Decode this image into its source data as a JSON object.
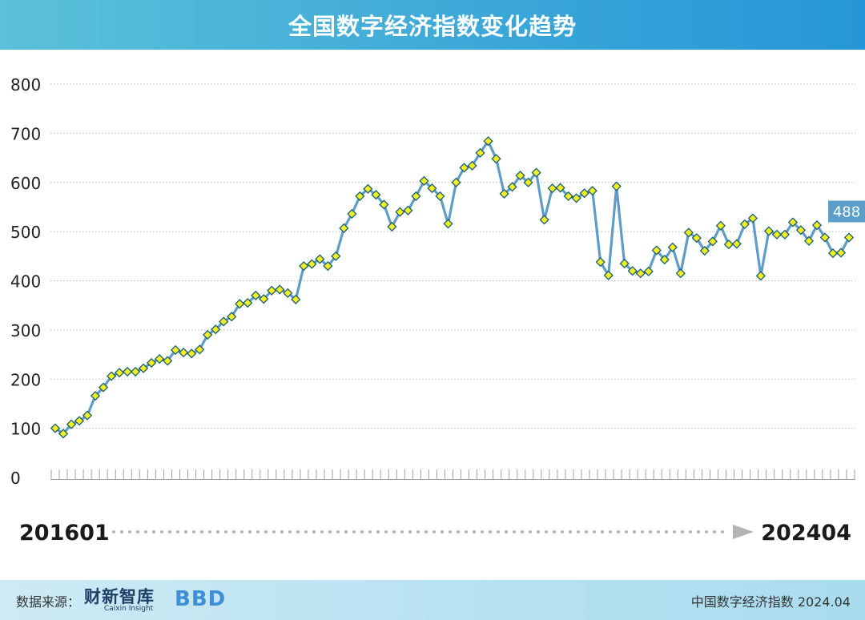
{
  "header": {
    "title": "全国数字经济指数变化趋势"
  },
  "chart_data": {
    "type": "line",
    "title": "全国数字经济指数变化趋势",
    "ylim": [
      0,
      800
    ],
    "yticks": [
      0,
      100,
      200,
      300,
      400,
      500,
      600,
      700,
      800
    ],
    "grid": true,
    "x_start": "201601",
    "x_end": "202404",
    "last_value_label": "488",
    "series": [
      {
        "values": [
          100,
          89,
          108,
          115,
          126,
          166,
          183,
          206,
          213,
          215,
          215,
          222,
          233,
          241,
          237,
          259,
          254,
          252,
          260,
          290,
          301,
          317,
          327,
          353,
          355,
          370,
          363,
          380,
          382,
          375,
          362,
          430,
          434,
          444,
          430,
          450,
          507,
          536,
          572,
          587,
          575,
          555,
          510,
          540,
          543,
          572,
          603,
          588,
          572,
          516,
          600,
          630,
          634,
          660,
          684,
          648,
          577,
          591,
          614,
          600,
          620,
          524,
          588,
          589,
          572,
          568,
          578,
          583,
          438,
          411,
          592,
          435,
          420,
          415,
          419,
          462,
          443,
          468,
          415,
          498,
          487,
          461,
          480,
          512,
          474,
          475,
          515,
          527,
          410,
          501,
          494,
          494,
          519,
          503,
          481,
          513,
          488,
          456,
          457,
          488
        ]
      }
    ]
  },
  "footer": {
    "source_label": "数据来源：",
    "brand_cn": "财新智库",
    "brand_en": "Caixin Insight",
    "logo": "BBD",
    "caption": "中国数字经济指数 2024.04"
  },
  "colors": {
    "line": "#5f9cc7",
    "marker_fill": "#f2ee1f",
    "marker_stroke": "#1a5e7a",
    "grid": "#b8b8b8",
    "arrow": "#b3b3b3",
    "value_badge": "#5b9fc9"
  }
}
